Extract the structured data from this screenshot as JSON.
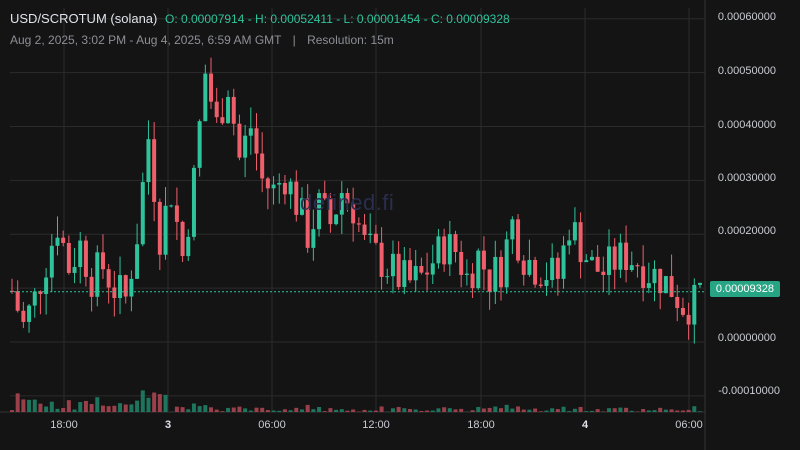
{
  "header": {
    "pair": "USD/SCROTUM (solana)",
    "ohlc": "O: 0.00007914 - H: 0.00052411 - L: 0.00001454 - C: 0.00009328",
    "range": "Aug 2, 2025, 3:02 PM - Aug 4, 2025, 6:59 AM GMT",
    "separator": "|",
    "resolution": "Resolution: 15m"
  },
  "watermark": "defined.fi",
  "colors": {
    "up": "#2fc39b",
    "down": "#ef5f6b",
    "background": "#141414",
    "grid": "#2b2b2b"
  },
  "chart_data": {
    "type": "candlestick",
    "x_ticks": [
      "18:00",
      "3",
      "06:00",
      "12:00",
      "18:00",
      "4",
      "06:00"
    ],
    "y_ticks": [
      "0.00060000",
      "0.00050000",
      "0.00040000",
      "0.00030000",
      "0.00020000",
      "0.00000000",
      "-0.00010000"
    ],
    "ylim": [
      -0.00013,
      0.00062
    ],
    "last_price": "0.00009328",
    "last_price_value": 9.328e-05,
    "grid": true,
    "close_path": [
      [
        0,
        9.5e-05
      ],
      [
        2,
        3e-05
      ],
      [
        4,
        8e-05
      ],
      [
        6,
        0.00015
      ],
      [
        8,
        0.00022
      ],
      [
        10,
        0.00014
      ],
      [
        12,
        0.00018
      ],
      [
        14,
        0.00012
      ],
      [
        16,
        0.00014
      ],
      [
        18,
        0.0001
      ],
      [
        20,
        8e-05
      ],
      [
        22,
        0.0002
      ],
      [
        24,
        0.00038
      ],
      [
        26,
        0.0002
      ],
      [
        28,
        0.00028
      ],
      [
        30,
        0.00016
      ],
      [
        32,
        0.0003
      ],
      [
        34,
        0.0005
      ],
      [
        36,
        0.0004
      ],
      [
        38,
        0.00048
      ],
      [
        40,
        0.00034
      ],
      [
        42,
        0.0004
      ],
      [
        44,
        0.0003
      ],
      [
        46,
        0.00028
      ],
      [
        48,
        0.00031
      ],
      [
        50,
        0.00026
      ],
      [
        52,
        0.0002
      ],
      [
        54,
        0.00025
      ],
      [
        56,
        0.00022
      ],
      [
        58,
        0.00028
      ],
      [
        60,
        0.00025
      ],
      [
        62,
        0.00018
      ],
      [
        64,
        0.00016
      ],
      [
        66,
        0.00014
      ],
      [
        68,
        0.00012
      ],
      [
        70,
        0.00011
      ],
      [
        72,
        0.00012
      ],
      [
        74,
        0.00015
      ],
      [
        76,
        0.00018
      ],
      [
        78,
        0.00017
      ],
      [
        80,
        0.00012
      ],
      [
        82,
        0.00016
      ],
      [
        84,
        0.00012
      ],
      [
        86,
        0.00014
      ],
      [
        88,
        0.00022
      ],
      [
        90,
        0.00016
      ],
      [
        92,
        0.00014
      ],
      [
        94,
        0.00013
      ],
      [
        96,
        0.00012
      ],
      [
        98,
        0.00022
      ],
      [
        100,
        0.00018
      ],
      [
        102,
        0.00014
      ],
      [
        104,
        0.00013
      ],
      [
        106,
        0.00015
      ],
      [
        108,
        0.00016
      ],
      [
        110,
        0.00015
      ],
      [
        112,
        0.00013
      ],
      [
        114,
        0.00012
      ],
      [
        116,
        0.0001
      ],
      [
        118,
        7e-05
      ],
      [
        120,
        7e-05
      ],
      [
        121,
        9.328e-05
      ]
    ],
    "volume_ylim": [
      0,
      1
    ]
  }
}
